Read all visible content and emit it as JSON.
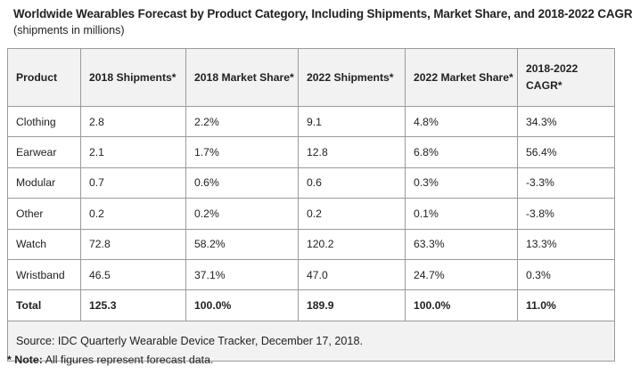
{
  "title": "Worldwide Wearables Forecast by Product Category, Including Shipments, Market Share, and 2018-2022 CAGR",
  "subtitle": "(shipments in millions)",
  "table": {
    "headers": [
      "Product",
      "2018 Shipments*",
      "2018 Market Share*",
      "2022 Shipments*",
      "2022 Market Share*",
      "2018-2022 CAGR*"
    ],
    "rows": [
      [
        "Clothing",
        "2.8",
        "2.2%",
        "9.1",
        "4.8%",
        "34.3%"
      ],
      [
        "Earwear",
        "2.1",
        "1.7%",
        "12.8",
        "6.8%",
        "56.4%"
      ],
      [
        "Modular",
        "0.7",
        "0.6%",
        "0.6",
        "0.3%",
        "-3.3%"
      ],
      [
        "Other",
        "0.2",
        "0.2%",
        "0.2",
        "0.1%",
        "-3.8%"
      ],
      [
        "Watch",
        "72.8",
        "58.2%",
        "120.2",
        "63.3%",
        "13.3%"
      ],
      [
        "Wristband",
        "46.5",
        "37.1%",
        "47.0",
        "24.7%",
        "0.3%"
      ]
    ],
    "total": [
      "Total",
      "125.3",
      "100.0%",
      "189.9",
      "100.0%",
      "11.0%"
    ],
    "source": "Source: IDC Quarterly Wearable Device Tracker, December 17, 2018."
  },
  "note": {
    "label": "* Note:",
    "text": "All figures represent forecast data."
  }
}
